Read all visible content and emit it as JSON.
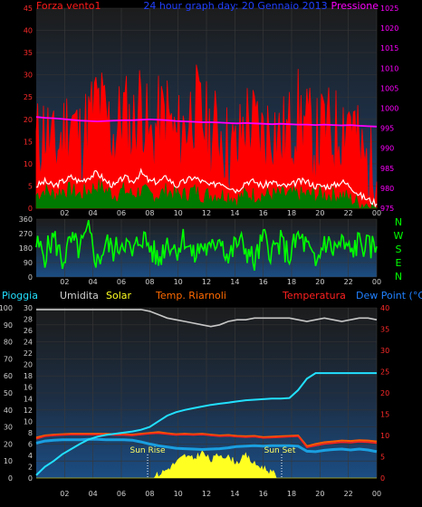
{
  "header": {
    "left_label": "Forza vento1",
    "center_label": "24 hour graph day: 20 Gennaio 2013",
    "right_label": "Pressione"
  },
  "direction_labels": [
    "N",
    "W",
    "S",
    "E",
    "N"
  ],
  "bottom_labels": {
    "pioggia": "Pioggia",
    "umidita": "Umidita",
    "solar": "Solar",
    "temp_riarnoli": "Temp. Riarnoli",
    "temperatura": "Temperatura",
    "dew_point": "Dew Point (°C)"
  },
  "sun": {
    "rise": "Sun Rise",
    "set": "Sun Set"
  },
  "colors": {
    "wind_gust": "#ff0000",
    "wind_avg": "#ffffff",
    "wind_low": "#007a00",
    "pressure": "#ff00ff",
    "direction": "#00ff00",
    "rain": "#22e0ff",
    "humidity": "#c8c8c8",
    "solar": "#ffff22",
    "temp_riarnoli": "#ff5a00",
    "temperatura": "#ff2020",
    "dew_point": "#1a9fe0"
  },
  "chart_data": [
    {
      "type": "line",
      "name": "wind-pressure",
      "x_ticks": [
        "02",
        "04",
        "06",
        "08",
        "10",
        "12",
        "14",
        "16",
        "18",
        "20",
        "22",
        "00"
      ],
      "left_axis": {
        "ylim": [
          0,
          45
        ],
        "ticks": [
          0,
          5,
          10,
          15,
          20,
          25,
          30,
          35,
          40,
          45
        ]
      },
      "right_axis": {
        "ylim": [
          975,
          1025
        ],
        "ticks": [
          975,
          980,
          985,
          990,
          995,
          1000,
          1005,
          1010,
          1015,
          1020,
          1025
        ]
      },
      "series": [
        {
          "name": "Forza vento1",
          "values": [
            14,
            18,
            12,
            16,
            21,
            15,
            19,
            24,
            20,
            16,
            22,
            17,
            25,
            14,
            19,
            21,
            15,
            18,
            23,
            20,
            16,
            18,
            13,
            12,
            20,
            18,
            16,
            19,
            15,
            17,
            21,
            18,
            14,
            18,
            16,
            19,
            22,
            12,
            9,
            6
          ]
        },
        {
          "name": "avg",
          "values": [
            5,
            6,
            5,
            6,
            7,
            6,
            7,
            8,
            6,
            5,
            7,
            6,
            8,
            6,
            6,
            7,
            5,
            6,
            7,
            6,
            5,
            6,
            5,
            4,
            6,
            6,
            5,
            6,
            5,
            5,
            6,
            6,
            5,
            5,
            5,
            6,
            5,
            3,
            2,
            1
          ]
        },
        {
          "name": "low",
          "values": [
            3,
            4,
            3,
            4,
            4,
            3,
            4,
            5,
            4,
            3,
            4,
            3,
            4,
            3,
            3,
            4,
            3,
            3,
            4,
            3,
            3,
            3,
            3,
            2,
            3,
            3,
            3,
            3,
            3,
            3,
            3,
            3,
            3,
            3,
            3,
            3,
            2,
            1,
            1,
            0
          ]
        },
        {
          "name": "Pressione",
          "values": [
            997.8,
            997.6,
            997.5,
            997.3,
            997.1,
            996.9,
            996.8,
            996.7,
            996.8,
            996.9,
            997.0,
            997.0,
            997.1,
            997.2,
            997.1,
            997.0,
            996.8,
            996.7,
            996.6,
            996.5,
            996.5,
            996.4,
            996.3,
            996.2,
            996.3,
            996.2,
            996.1,
            996.0,
            996.1,
            996.0,
            995.9,
            995.9,
            995.8,
            995.9,
            995.8,
            995.7,
            995.8,
            995.6,
            995.5,
            995.4
          ]
        }
      ]
    },
    {
      "type": "line",
      "name": "wind-direction",
      "x_ticks": [
        "02",
        "04",
        "06",
        "08",
        "10",
        "12",
        "14",
        "16",
        "18",
        "20",
        "22",
        "00"
      ],
      "ylim": [
        0,
        360
      ],
      "y_ticks": [
        0,
        90,
        180,
        270,
        360
      ],
      "series": [
        {
          "name": "direction",
          "values": [
            200,
            140,
            250,
            100,
            220,
            170,
            280,
            90,
            210,
            160,
            240,
            130,
            260,
            190,
            100,
            230,
            170,
            250,
            120,
            200,
            150,
            270,
            110,
            220,
            180,
            90,
            240,
            160,
            210,
            130,
            250,
            190,
            60,
            230,
            170,
            210,
            150,
            220,
            180,
            190
          ]
        }
      ]
    },
    {
      "type": "area",
      "name": "rain-temp-solar",
      "x_ticks": [
        "02",
        "04",
        "06",
        "08",
        "10",
        "12",
        "14",
        "16",
        "18",
        "20",
        "22",
        "00"
      ],
      "left_axis": {
        "ylim": [
          0,
          100
        ],
        "ticks": [
          0,
          10,
          20,
          30,
          40,
          50,
          60,
          70,
          80,
          90,
          100
        ]
      },
      "inner_left_axis": {
        "ylim": [
          0,
          30
        ],
        "ticks": [
          0,
          2,
          4,
          6,
          8,
          10,
          12,
          14,
          16,
          18,
          20,
          22,
          24,
          26,
          28,
          30
        ]
      },
      "right_axis": {
        "ylim": [
          0,
          40
        ],
        "ticks": [
          0,
          5,
          10,
          15,
          20,
          25,
          30,
          35,
          40
        ]
      },
      "series": [
        {
          "name": "Pioggia",
          "values": [
            0.5,
            2.0,
            3.0,
            4.2,
            5.1,
            6.0,
            6.8,
            7.3,
            7.6,
            7.8,
            8.0,
            8.2,
            8.5,
            9.0,
            10.0,
            11.0,
            11.6,
            12.0,
            12.3,
            12.6,
            12.9,
            13.1,
            13.3,
            13.5,
            13.7,
            13.8,
            13.9,
            14.0,
            14.0,
            14.1,
            15.5,
            17.5,
            18.5,
            18.5,
            18.5,
            18.5,
            18.5,
            18.5,
            18.5,
            18.5
          ]
        },
        {
          "name": "Umidita",
          "values": [
            99,
            99,
            99,
            99,
            99,
            99,
            99,
            99,
            99,
            99,
            99,
            99,
            99,
            98,
            96,
            94,
            93,
            92,
            91,
            90,
            89,
            90,
            92,
            93,
            93,
            94,
            94,
            94,
            94,
            94,
            93,
            92,
            93,
            94,
            93,
            92,
            93,
            94,
            94,
            93
          ]
        },
        {
          "name": "Solar",
          "values": [
            0,
            0,
            0,
            0,
            0,
            0,
            0,
            0,
            0,
            0,
            0,
            0,
            0,
            0,
            2,
            5,
            9,
            13,
            11,
            15,
            10,
            14,
            12,
            9,
            13,
            8,
            6,
            3,
            0,
            0,
            0,
            0,
            0,
            0,
            0,
            0,
            0,
            0,
            0,
            0
          ]
        },
        {
          "name": "Temp. Riarnoli",
          "values": [
            9.5,
            10.0,
            10.2,
            10.3,
            10.4,
            10.4,
            10.4,
            10.4,
            10.4,
            10.3,
            10.3,
            10.2,
            10.4,
            10.6,
            10.8,
            10.5,
            10.3,
            10.4,
            10.3,
            10.4,
            10.2,
            10.0,
            10.1,
            9.9,
            9.8,
            9.9,
            9.6,
            9.7,
            9.8,
            9.9,
            10.0,
            7.5,
            8.0,
            8.4,
            8.6,
            8.8,
            8.7,
            8.9,
            8.8,
            8.6
          ]
        },
        {
          "name": "Temperatura",
          "values": [
            9.2,
            9.8,
            10.0,
            10.1,
            10.2,
            10.2,
            10.2,
            10.2,
            10.2,
            10.1,
            10.1,
            10.0,
            10.2,
            10.4,
            10.5,
            10.3,
            10.1,
            10.2,
            10.1,
            10.2,
            10.0,
            9.8,
            9.9,
            9.7,
            9.6,
            9.7,
            9.4,
            9.5,
            9.6,
            9.7,
            9.8,
            7.2,
            7.6,
            8.0,
            8.2,
            8.4,
            8.3,
            8.5,
            8.4,
            8.2
          ]
        },
        {
          "name": "Dew Point (°C)",
          "values": [
            8.2,
            8.7,
            8.9,
            9.0,
            9.0,
            9.0,
            9.1,
            9.1,
            9.0,
            9.0,
            9.0,
            8.9,
            8.5,
            8.0,
            7.6,
            7.3,
            7.0,
            6.9,
            6.8,
            6.7,
            6.8,
            6.9,
            7.1,
            7.4,
            7.5,
            7.6,
            7.5,
            7.6,
            7.6,
            7.6,
            7.5,
            6.3,
            6.2,
            6.5,
            6.7,
            6.8,
            6.6,
            6.8,
            6.6,
            6.2
          ]
        }
      ]
    }
  ]
}
